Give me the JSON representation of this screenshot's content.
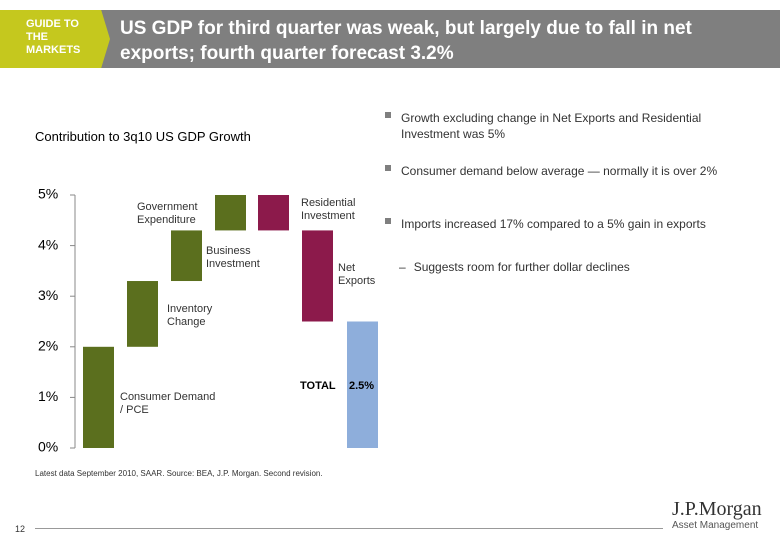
{
  "header": {
    "tag": "GUIDE TO THE MARKETS",
    "title": "US GDP for third quarter was weak, but largely due to fall in net exports; fourth quarter forecast 3.2%"
  },
  "chart_data": {
    "type": "waterfall",
    "title": "Contribution to 3q10 US GDP Growth",
    "categories": [
      "Consumer Demand / PCE",
      "Inventory Change",
      "Business Investment",
      "Government Expenditure",
      "Residential Investment",
      "Net Exports",
      "TOTAL"
    ],
    "values": [
      2.0,
      1.3,
      1.0,
      0.7,
      -0.7,
      -1.8,
      2.5
    ],
    "measure": [
      "relative",
      "relative",
      "relative",
      "relative",
      "relative",
      "relative",
      "total"
    ],
    "value_labels": [
      null,
      null,
      null,
      null,
      null,
      null,
      "2.5%"
    ],
    "increase_color": "#5b6f1e",
    "decrease_color": "#8c1a4b",
    "total_color": "#8eaedb",
    "ylim": [
      0,
      5
    ],
    "yticks": [
      {
        "value": 0,
        "label": "0%"
      },
      {
        "value": 1,
        "label": "1%"
      },
      {
        "value": 2,
        "label": "2%"
      },
      {
        "value": 3,
        "label": "3%"
      },
      {
        "value": 4,
        "label": "4%"
      },
      {
        "value": 5,
        "label": "5%"
      }
    ]
  },
  "bullets": [
    "Growth excluding change in Net Exports and Residential Investment was 5%",
    "Consumer demand below average — normally it is over 2%",
    "Imports increased 17% compared to a 5% gain in exports"
  ],
  "sub_bullet": "Suggests room for further dollar declines",
  "source": "Latest data September 2010, SAAR. Source: BEA, J.P. Morgan. Second revision.",
  "page_number": "12",
  "logo": {
    "name": "J.P.Morgan",
    "division": "Asset Management"
  }
}
